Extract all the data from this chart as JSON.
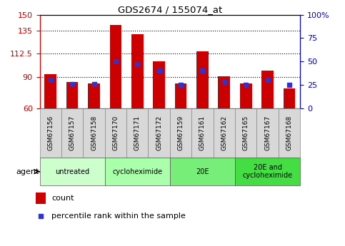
{
  "title": "GDS2674 / 155074_at",
  "samples": [
    "GSM67156",
    "GSM67157",
    "GSM67158",
    "GSM67170",
    "GSM67171",
    "GSM67172",
    "GSM67159",
    "GSM67161",
    "GSM67162",
    "GSM67165",
    "GSM67167",
    "GSM67168"
  ],
  "counts": [
    93,
    85,
    84,
    140,
    131,
    105,
    84,
    115,
    91,
    84,
    96,
    79
  ],
  "percentiles": [
    30,
    26,
    26,
    50,
    47,
    40,
    25,
    40,
    28,
    25,
    30,
    25
  ],
  "y_min": 60,
  "y_max": 150,
  "y_ticks": [
    60,
    90,
    112.5,
    135,
    150
  ],
  "y_tick_labels": [
    "60",
    "90",
    "112.5",
    "135",
    "150"
  ],
  "y2_ticks": [
    0,
    25,
    50,
    75,
    100
  ],
  "y2_tick_labels": [
    "0",
    "25",
    "50",
    "75",
    "100%"
  ],
  "dotted_lines": [
    90,
    112.5,
    135
  ],
  "bar_color": "#cc0000",
  "dot_color": "#3333cc",
  "bar_width": 0.55,
  "groups": [
    {
      "label": "untreated",
      "start": 0,
      "end": 3
    },
    {
      "label": "cycloheximide",
      "start": 3,
      "end": 6
    },
    {
      "label": "20E",
      "start": 6,
      "end": 9
    },
    {
      "label": "20E and\ncycloheximide",
      "start": 9,
      "end": 12
    }
  ],
  "group_colors": [
    "#ccffcc",
    "#aaffaa",
    "#77ee77",
    "#44dd44"
  ],
  "tick_label_color_left": "#cc0000",
  "tick_label_color_right": "#0000cc",
  "sample_box_color": "#d8d8d8",
  "plot_bg_color": "#ffffff"
}
